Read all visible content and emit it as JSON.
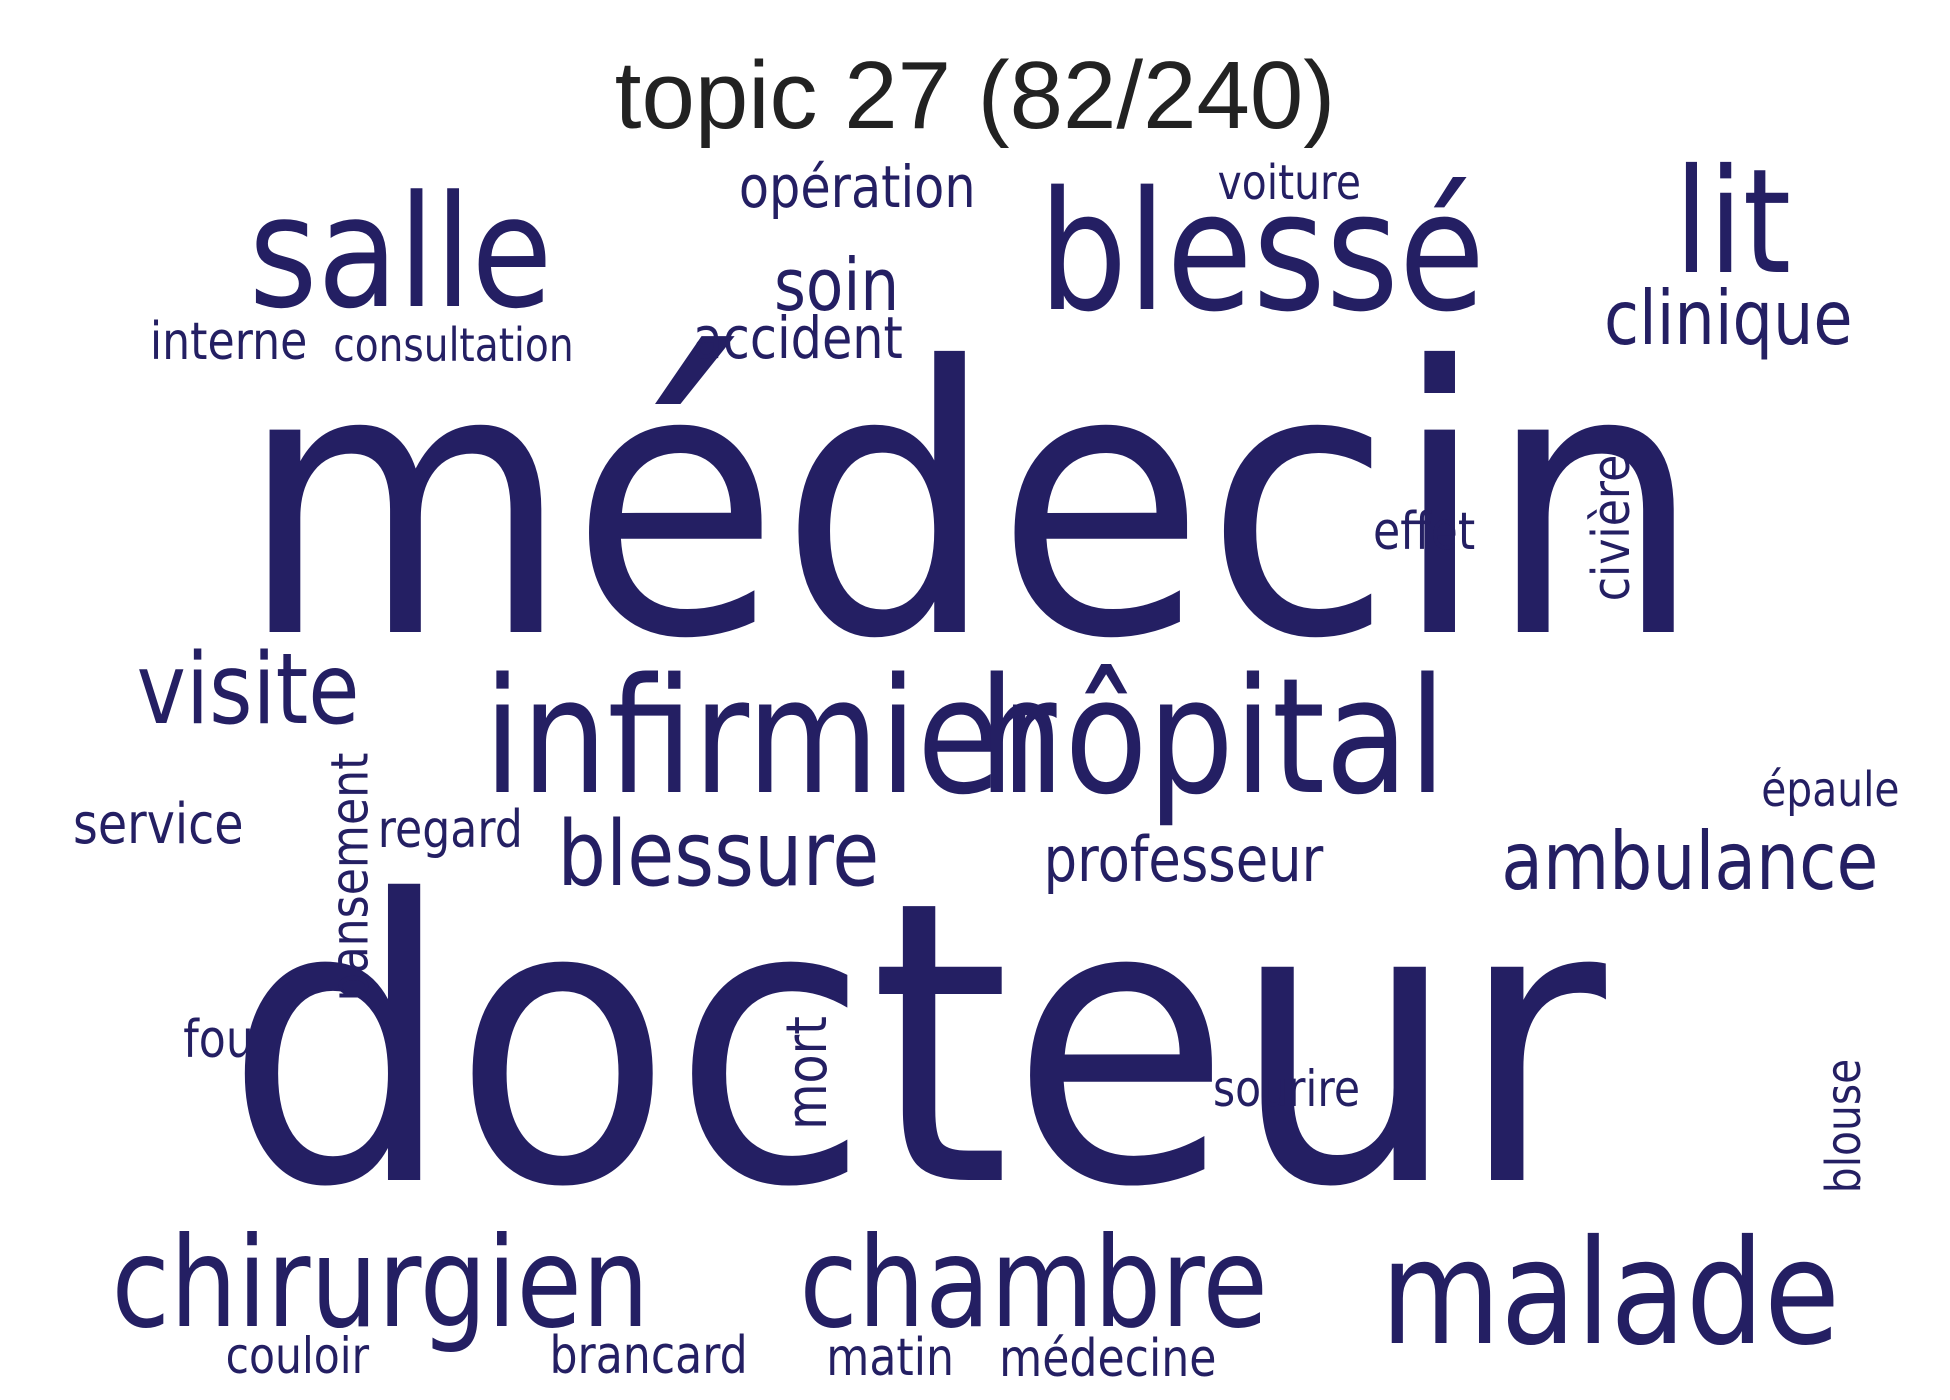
{
  "title": "topic 27 (82/240)",
  "colors": {
    "word": "#241f63",
    "title": "#222222",
    "background": "#ffffff"
  },
  "words": [
    {
      "key": "medecin",
      "text": "médecin"
    },
    {
      "key": "docteur",
      "text": "docteur"
    },
    {
      "key": "infirmier",
      "text": "infirmier"
    },
    {
      "key": "hopital",
      "text": "hôpital"
    },
    {
      "key": "blesse",
      "text": "blessé"
    },
    {
      "key": "salle",
      "text": "salle"
    },
    {
      "key": "malade",
      "text": "malade"
    },
    {
      "key": "chirurgien",
      "text": "chirurgien"
    },
    {
      "key": "chambre",
      "text": "chambre"
    },
    {
      "key": "lit",
      "text": "lit"
    },
    {
      "key": "visite",
      "text": "visite"
    },
    {
      "key": "blessure",
      "text": "blessure"
    },
    {
      "key": "ambulance",
      "text": "ambulance"
    },
    {
      "key": "clinique",
      "text": "clinique"
    },
    {
      "key": "soin",
      "text": "soin"
    },
    {
      "key": "accident",
      "text": "accident"
    },
    {
      "key": "professeur",
      "text": "professeur"
    },
    {
      "key": "operation",
      "text": "opération"
    },
    {
      "key": "interne",
      "text": "interne"
    },
    {
      "key": "consultation",
      "text": "consultation"
    },
    {
      "key": "voiture",
      "text": "voiture"
    },
    {
      "key": "service",
      "text": "service"
    },
    {
      "key": "regard",
      "text": "regard"
    },
    {
      "key": "epaule",
      "text": "épaule"
    },
    {
      "key": "pansement",
      "text": "pansement"
    },
    {
      "key": "effet",
      "text": "effet"
    },
    {
      "key": "civiere",
      "text": "civière"
    },
    {
      "key": "fou",
      "text": "fou"
    },
    {
      "key": "mort",
      "text": "mort"
    },
    {
      "key": "sourire",
      "text": "sourire"
    },
    {
      "key": "blouse",
      "text": "blouse"
    },
    {
      "key": "couloir",
      "text": "couloir"
    },
    {
      "key": "brancard",
      "text": "brancard"
    },
    {
      "key": "matin",
      "text": "matin"
    },
    {
      "key": "medecine",
      "text": "médecine"
    }
  ]
}
